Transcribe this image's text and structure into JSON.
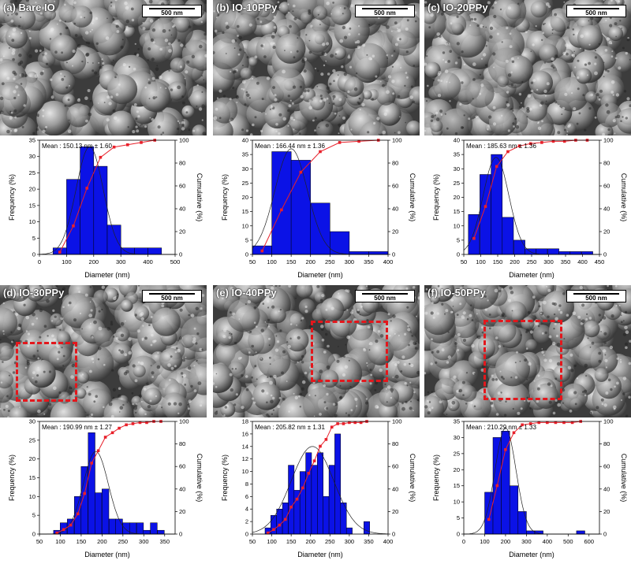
{
  "colors": {
    "bar": "#0b12e6",
    "cumulative": "#e8202a",
    "fit": "#222222",
    "roi": "#e3171c"
  },
  "scalebar_label": "500 nm",
  "common": {
    "xlabel": "Diameter (nm)",
    "ylabel_left": "Frequency (%)",
    "ylabel_right": "Cumulative (%)"
  },
  "panels": [
    {
      "id": "a",
      "label": "(a) Bare IO",
      "mean": "Mean : 150.13 nm ± 1.60",
      "roi": false
    },
    {
      "id": "b",
      "label": "(b) IO-10PPy",
      "mean": "Mean : 166.44 nm ± 1.36",
      "roi": false
    },
    {
      "id": "c",
      "label": "(c) IO-20PPy",
      "mean": "Mean : 185.63 nm ± 1.36",
      "roi": false
    },
    {
      "id": "d",
      "label": "(d) IO-30PPy",
      "mean": "Mean : 190.99 nm ± 1.27",
      "roi": true
    },
    {
      "id": "e",
      "label": "(e) IO-40PPy",
      "mean": "Mean : 205.82 nm ± 1.31",
      "roi": true
    },
    {
      "id": "f",
      "label": "(f) IO-50PPy",
      "mean": "Mean : 210.29 nm ± 1.33",
      "roi": true
    }
  ],
  "chart_data": [
    {
      "type": "bar",
      "panel": "a",
      "xlabel": "Diameter (nm)",
      "ylabel": "Frequency (%)",
      "ylabel_right": "Cumulative (%)",
      "xlim": [
        0,
        500
      ],
      "ylim": [
        0,
        35
      ],
      "y2lim": [
        0,
        100
      ],
      "xticks": [
        0,
        100,
        200,
        300,
        400,
        500
      ],
      "yticks": [
        0,
        5,
        10,
        15,
        20,
        25,
        30,
        35
      ],
      "y2ticks": [
        0,
        20,
        40,
        60,
        80,
        100
      ],
      "bin_width": 50,
      "x": [
        75,
        125,
        175,
        225,
        275,
        325,
        375,
        425
      ],
      "values": [
        2,
        23,
        33,
        27,
        9,
        2,
        2,
        2
      ],
      "cumulative": [
        2,
        25,
        58,
        85,
        94,
        96,
        98,
        100
      ],
      "fit": {
        "mean": 185,
        "sigma": 50,
        "peak": 33
      }
    },
    {
      "type": "bar",
      "panel": "b",
      "xlabel": "Diameter (nm)",
      "ylabel": "Frequency (%)",
      "ylabel_right": "Cumulative (%)",
      "xlim": [
        50,
        400
      ],
      "ylim": [
        0,
        40
      ],
      "y2lim": [
        0,
        100
      ],
      "xticks": [
        50,
        100,
        150,
        200,
        250,
        300,
        350,
        400
      ],
      "yticks": [
        0,
        5,
        10,
        15,
        20,
        25,
        30,
        35,
        40
      ],
      "y2ticks": [
        0,
        20,
        40,
        60,
        80,
        100
      ],
      "bin_width": 50,
      "x": [
        75,
        125,
        175,
        225,
        275,
        325,
        375
      ],
      "values": [
        3,
        36,
        33,
        18,
        8,
        1,
        1
      ],
      "cumulative": [
        3,
        39,
        72,
        90,
        98,
        99,
        100
      ],
      "fit": {
        "mean": 150,
        "sigma": 42,
        "peak": 37
      }
    },
    {
      "type": "bar",
      "panel": "c",
      "xlabel": "Diameter (nm)",
      "ylabel": "Frequency (%)",
      "ylabel_right": "Cumulative (%)",
      "xlim": [
        50,
        450
      ],
      "ylim": [
        0,
        40
      ],
      "y2lim": [
        0,
        100
      ],
      "xticks": [
        50,
        100,
        150,
        200,
        250,
        300,
        350,
        400,
        450
      ],
      "yticks": [
        0,
        5,
        10,
        15,
        20,
        25,
        30,
        35,
        40
      ],
      "y2ticks": [
        0,
        20,
        40,
        60,
        80,
        100
      ],
      "bin_width": 33,
      "x": [
        80,
        114,
        147,
        180,
        214,
        247,
        280,
        314,
        347,
        380,
        414
      ],
      "values": [
        14,
        28,
        35,
        13,
        5,
        2,
        2,
        2,
        1,
        1,
        1
      ],
      "cumulative": [
        14,
        42,
        77,
        90,
        95,
        97,
        98,
        99,
        99,
        100,
        100
      ],
      "fit": {
        "mean": 145,
        "sigma": 38,
        "peak": 34
      }
    },
    {
      "type": "bar",
      "panel": "d",
      "xlabel": "Diameter (nm)",
      "ylabel": "Frequency (%)",
      "ylabel_right": "Cumulative (%)",
      "xlim": [
        50,
        375
      ],
      "ylim": [
        0,
        30
      ],
      "y2lim": [
        0,
        100
      ],
      "xticks": [
        50,
        100,
        150,
        200,
        250,
        300,
        350
      ],
      "yticks": [
        0,
        5,
        10,
        15,
        20,
        25,
        30
      ],
      "y2ticks": [
        0,
        20,
        40,
        60,
        80,
        100
      ],
      "bin_width": 16.5,
      "x": [
        92,
        108,
        125,
        142,
        158,
        175,
        191,
        208,
        225,
        241,
        258,
        274,
        291,
        307,
        324,
        341
      ],
      "values": [
        1,
        3,
        4,
        10,
        18,
        27,
        11,
        12,
        4,
        4,
        3,
        3,
        3,
        1,
        3,
        1
      ],
      "cumulative": [
        1,
        4,
        8,
        18,
        36,
        63,
        74,
        86,
        90,
        94,
        97,
        98,
        99,
        99,
        100,
        100
      ],
      "fit": {
        "mean": 185,
        "sigma": 30,
        "peak": 22
      }
    },
    {
      "type": "bar",
      "panel": "e",
      "xlabel": "Diameter (nm)",
      "ylabel": "Frequency (%)",
      "ylabel_right": "Cumulative (%)",
      "xlim": [
        50,
        400
      ],
      "ylim": [
        0,
        18
      ],
      "y2lim": [
        0,
        100
      ],
      "xticks": [
        50,
        100,
        150,
        200,
        250,
        300,
        350,
        400
      ],
      "yticks": [
        0,
        2,
        4,
        6,
        8,
        10,
        12,
        14,
        16,
        18
      ],
      "y2ticks": [
        0,
        20,
        40,
        60,
        80,
        100
      ],
      "bin_width": 15,
      "x": [
        90,
        105,
        120,
        135,
        150,
        165,
        180,
        195,
        210,
        225,
        240,
        255,
        270,
        285,
        300,
        315,
        330,
        345
      ],
      "values": [
        1,
        3,
        4,
        5,
        11,
        7,
        10,
        13,
        11,
        13,
        6,
        11,
        16,
        5,
        1,
        0,
        0,
        2
      ],
      "cumulative": [
        1,
        4,
        8,
        13,
        24,
        31,
        41,
        54,
        65,
        78,
        84,
        95,
        98,
        98,
        99,
        99,
        99,
        100
      ],
      "fit": {
        "mean": 205,
        "sigma": 55,
        "peak": 14
      }
    },
    {
      "type": "bar",
      "panel": "f",
      "xlabel": "Diameter (nm)",
      "ylabel": "Frequency (%)",
      "ylabel_right": "Cumulative (%)",
      "xlim": [
        0,
        650
      ],
      "ylim": [
        0,
        35
      ],
      "y2lim": [
        0,
        100
      ],
      "xticks": [
        0,
        100,
        200,
        300,
        400,
        500,
        600
      ],
      "yticks": [
        0,
        5,
        10,
        15,
        20,
        25,
        30,
        35
      ],
      "y2ticks": [
        0,
        20,
        40,
        60,
        80,
        100
      ],
      "bin_width": 40,
      "x": [
        120,
        160,
        200,
        240,
        280,
        320,
        360,
        400,
        440,
        480,
        520,
        560
      ],
      "values": [
        13,
        30,
        32,
        15,
        7,
        1,
        1,
        0,
        0,
        0,
        0,
        1
      ],
      "cumulative": [
        13,
        43,
        75,
        90,
        97,
        98,
        99,
        99,
        99,
        99,
        99,
        100
      ],
      "fit": {
        "mean": 200,
        "sigma": 50,
        "peak": 33
      }
    }
  ]
}
